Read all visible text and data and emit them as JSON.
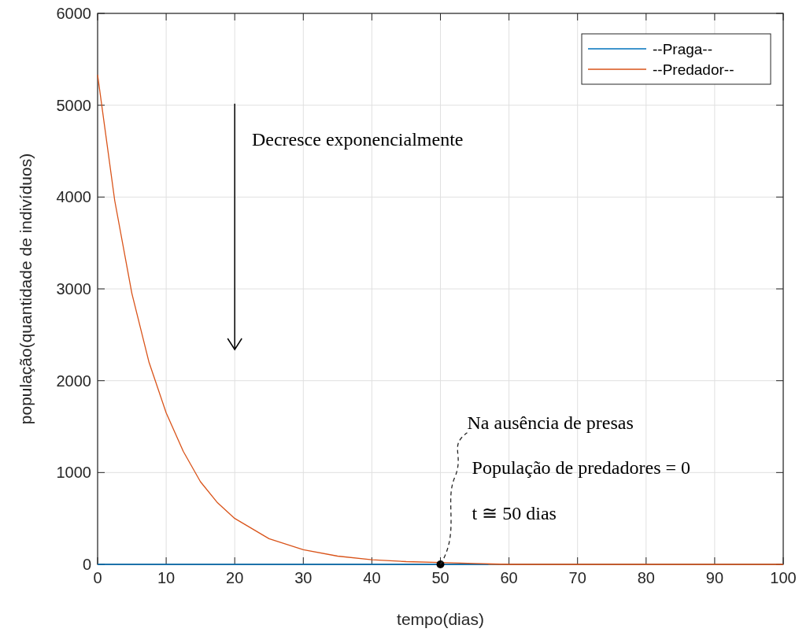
{
  "chart_data": {
    "type": "line",
    "xlabel": "tempo(dias)",
    "ylabel": "população(quantidade de indivíduos)",
    "xlim": [
      0,
      100
    ],
    "xticks": [
      0,
      10,
      20,
      30,
      40,
      50,
      60,
      70,
      80,
      90,
      100
    ],
    "ylim": [
      0,
      6000
    ],
    "yticks": [
      0,
      1000,
      2000,
      3000,
      4000,
      5000,
      6000
    ],
    "grid": true,
    "legend": "top right",
    "marker": "none",
    "line_style": "solid",
    "series": [
      {
        "name": "--Praga--",
        "color": "#0072bd",
        "x": [
          0,
          57
        ],
        "values": [
          0,
          0
        ]
      },
      {
        "name": "--Predador--",
        "color": "#d95319",
        "x": [
          0,
          2.5,
          5,
          7.5,
          10,
          12.5,
          15,
          17.5,
          20,
          25,
          30,
          35,
          40,
          45,
          50,
          55,
          60,
          70,
          80,
          90,
          100
        ],
        "values": [
          5330,
          3960,
          2950,
          2200,
          1650,
          1230,
          900,
          670,
          500,
          280,
          160,
          90,
          50,
          30,
          20,
          10,
          0,
          0,
          0,
          0,
          0
        ]
      },
      {
        "type": "scatter",
        "color": "#000000",
        "marker": "circle",
        "x": [
          50
        ],
        "values": [
          0
        ]
      }
    ],
    "annotations": [
      "Decresce exponencialmente",
      {
        "text": "Na ausência de presas",
        "x": 50,
        "y": 0
      },
      "População de predadores = 0",
      "t ≅ 50 dias"
    ]
  }
}
